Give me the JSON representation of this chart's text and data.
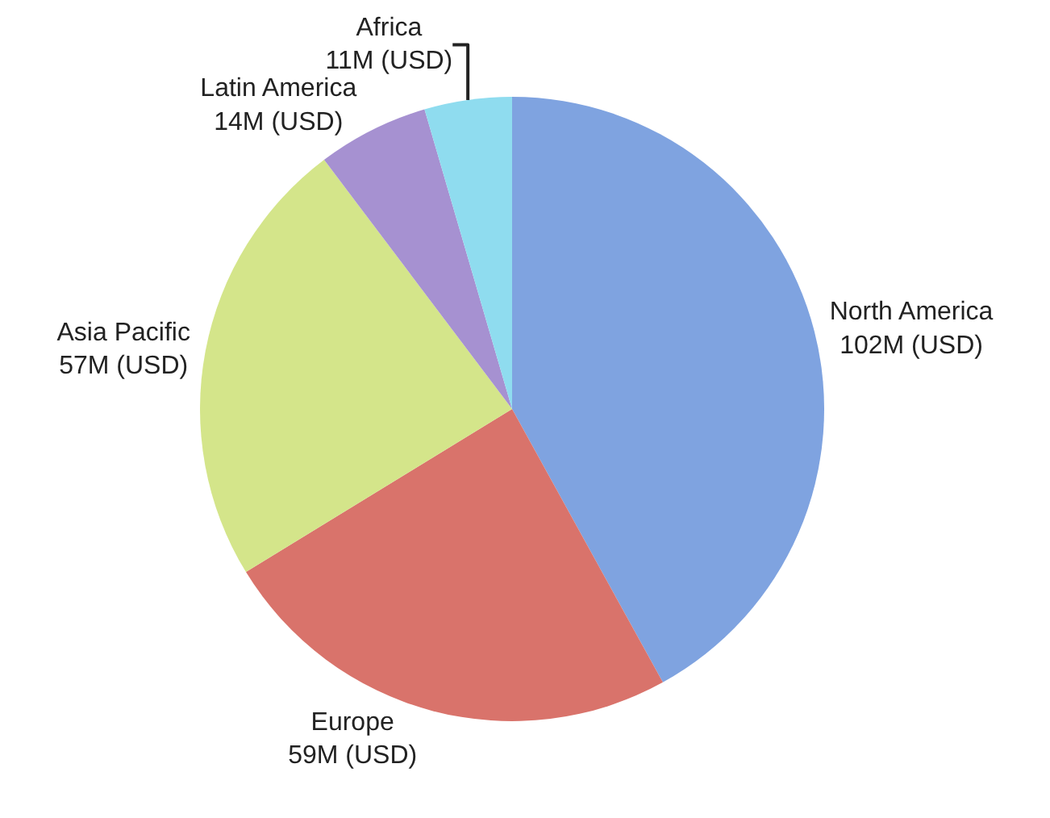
{
  "chart_data": {
    "type": "pie",
    "categories": [
      "North America",
      "Europe",
      "Asia Pacific",
      "Latin America",
      "Africa"
    ],
    "values": [
      102,
      59,
      57,
      14,
      11
    ],
    "value_labels": [
      "102M (USD)",
      "59M (USD)",
      "57M (USD)",
      "14M (USD)",
      "11M (USD)"
    ],
    "colors": [
      "#7fa3e0",
      "#d9736b",
      "#d4e58a",
      "#a691d1",
      "#8fdcef"
    ],
    "legend": false
  }
}
